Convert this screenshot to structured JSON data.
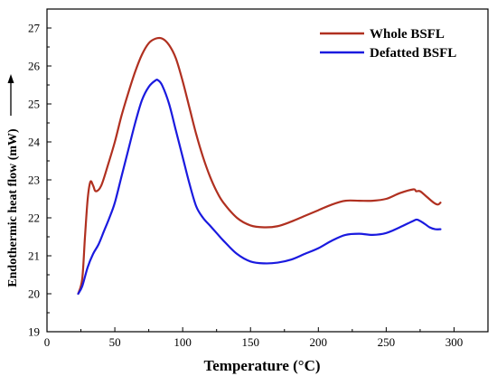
{
  "chart_data": {
    "type": "line",
    "xlabel": "Temperature (°C)",
    "ylabel": "Endothermic heat flow (mW)",
    "xlim": [
      0,
      325
    ],
    "ylim": [
      19,
      27.5
    ],
    "xticks": [
      0,
      50,
      100,
      150,
      200,
      250,
      300
    ],
    "yticks": [
      19,
      20,
      21,
      22,
      23,
      24,
      25,
      26,
      27
    ],
    "legend_position": "top-right",
    "grid": false,
    "series": [
      {
        "name": "Whole BSFL",
        "color": "#b03020",
        "x": [
          23,
          26,
          28,
          30,
          32,
          34,
          36,
          40,
          45,
          50,
          55,
          60,
          65,
          70,
          75,
          80,
          85,
          90,
          95,
          100,
          105,
          110,
          115,
          120,
          125,
          130,
          140,
          150,
          160,
          170,
          180,
          190,
          200,
          210,
          220,
          230,
          240,
          250,
          260,
          270,
          272,
          275,
          280,
          285,
          288,
          290
        ],
        "values": [
          20.0,
          20.4,
          21.5,
          22.5,
          22.95,
          22.85,
          22.7,
          22.85,
          23.4,
          24.0,
          24.7,
          25.3,
          25.85,
          26.3,
          26.6,
          26.72,
          26.72,
          26.55,
          26.2,
          25.6,
          24.9,
          24.2,
          23.6,
          23.1,
          22.7,
          22.4,
          22.0,
          21.8,
          21.75,
          21.78,
          21.9,
          22.05,
          22.2,
          22.35,
          22.45,
          22.45,
          22.45,
          22.5,
          22.65,
          22.75,
          22.7,
          22.7,
          22.55,
          22.4,
          22.35,
          22.4
        ]
      },
      {
        "name": "Defatted BSFL",
        "color": "#1a1adf",
        "x": [
          23,
          26,
          30,
          34,
          38,
          42,
          46,
          50,
          55,
          60,
          65,
          70,
          75,
          80,
          82,
          85,
          90,
          95,
          100,
          105,
          110,
          115,
          120,
          125,
          130,
          140,
          150,
          160,
          170,
          180,
          190,
          200,
          210,
          220,
          230,
          240,
          250,
          260,
          270,
          273,
          278,
          282,
          286,
          290
        ],
        "values": [
          20.0,
          20.2,
          20.7,
          21.05,
          21.3,
          21.65,
          22.0,
          22.4,
          23.1,
          23.8,
          24.5,
          25.1,
          25.45,
          25.62,
          25.62,
          25.48,
          25.0,
          24.3,
          23.6,
          22.9,
          22.3,
          22.0,
          21.8,
          21.6,
          21.4,
          21.05,
          20.85,
          20.8,
          20.82,
          20.9,
          21.05,
          21.2,
          21.4,
          21.55,
          21.58,
          21.55,
          21.6,
          21.75,
          21.92,
          21.95,
          21.85,
          21.75,
          21.7,
          21.7
        ]
      }
    ]
  }
}
